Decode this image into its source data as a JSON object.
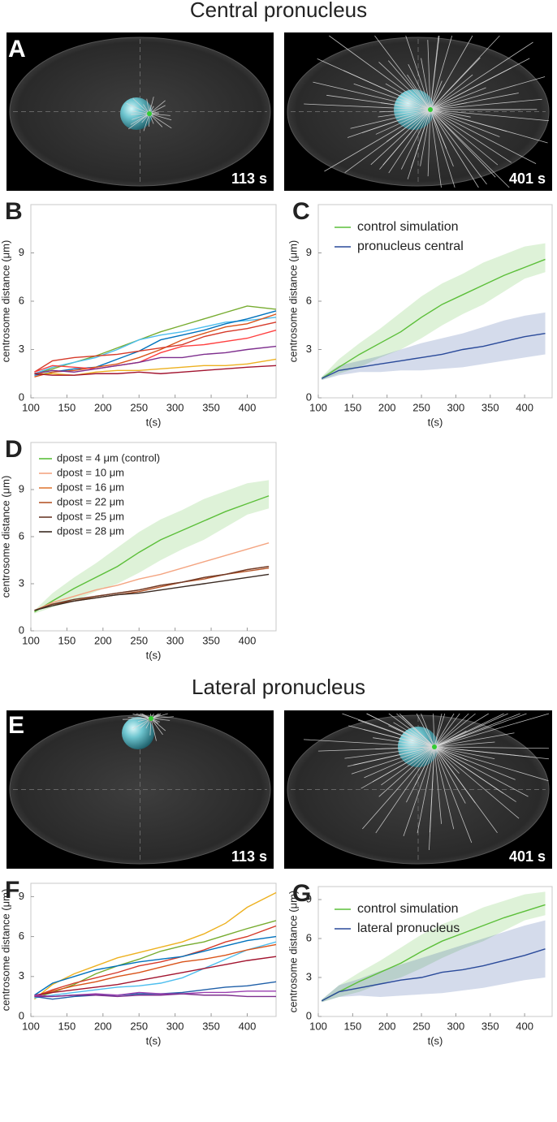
{
  "titles": [
    "Central pronucleus",
    "Lateral pronucleus"
  ],
  "image_panels": [
    {
      "letter": "A",
      "times": [
        "113 s",
        "401 s"
      ]
    },
    {
      "letter": "E",
      "times": [
        "113 s",
        "401 s"
      ]
    }
  ],
  "chart_data": [
    {
      "type": "line",
      "panel": "B",
      "xlabel": "t(s)",
      "ylabel": "centrosome distance (μm)",
      "xlim": [
        100,
        440
      ],
      "ylim": [
        0,
        12
      ],
      "xticks": [
        100,
        150,
        200,
        250,
        300,
        350,
        400
      ],
      "yticks": [
        0,
        3,
        6,
        9
      ],
      "x": [
        105,
        130,
        160,
        190,
        220,
        250,
        280,
        310,
        340,
        370,
        400,
        440
      ],
      "series": [
        {
          "color": "#77ac30",
          "values": [
            1.5,
            1.8,
            2.2,
            2.6,
            3.1,
            3.6,
            4.1,
            4.5,
            4.9,
            5.3,
            5.7,
            5.5
          ]
        },
        {
          "color": "#4dbeee",
          "values": [
            1.5,
            1.9,
            2.2,
            2.5,
            3.0,
            3.6,
            3.9,
            4.1,
            4.4,
            4.7,
            4.8,
            5.0
          ]
        },
        {
          "color": "#0072bd",
          "values": [
            1.4,
            1.6,
            1.8,
            1.9,
            2.4,
            2.9,
            3.6,
            3.9,
            4.2,
            4.6,
            4.9,
            5.4
          ]
        },
        {
          "color": "#d95319",
          "values": [
            1.3,
            1.6,
            1.7,
            1.9,
            2.1,
            2.5,
            3.0,
            3.6,
            4.0,
            4.4,
            4.6,
            5.2
          ]
        },
        {
          "color": "#d63a2a",
          "values": [
            1.6,
            2.3,
            2.5,
            2.6,
            2.7,
            2.9,
            3.1,
            3.3,
            3.8,
            4.1,
            4.3,
            4.7
          ]
        },
        {
          "color": "#ff4040",
          "values": [
            1.6,
            2.0,
            1.9,
            1.8,
            2.0,
            2.2,
            2.8,
            3.2,
            3.3,
            3.5,
            3.7,
            4.2
          ]
        },
        {
          "color": "#7e2f8e",
          "values": [
            1.5,
            1.7,
            1.6,
            1.8,
            2.0,
            2.2,
            2.5,
            2.5,
            2.7,
            2.8,
            3.0,
            3.2
          ]
        },
        {
          "color": "#edb120",
          "values": [
            1.5,
            1.5,
            1.4,
            1.6,
            1.7,
            1.7,
            1.8,
            1.9,
            2.0,
            2.0,
            2.1,
            2.4
          ]
        },
        {
          "color": "#a2142f",
          "values": [
            1.5,
            1.4,
            1.4,
            1.5,
            1.5,
            1.6,
            1.5,
            1.6,
            1.7,
            1.8,
            1.9,
            2.0
          ]
        }
      ]
    },
    {
      "type": "line",
      "panel": "C",
      "xlabel": "t(s)",
      "ylabel": "centrosome distance (μm)",
      "xlim": [
        100,
        440
      ],
      "ylim": [
        0,
        12
      ],
      "xticks": [
        100,
        150,
        200,
        250,
        300,
        350,
        400
      ],
      "yticks": [
        0,
        3,
        6,
        9
      ],
      "legend": "northwest",
      "x": [
        105,
        130,
        160,
        190,
        220,
        250,
        280,
        310,
        340,
        370,
        400,
        430
      ],
      "series": [
        {
          "name": "control simulation",
          "color": "#5cbf3a",
          "values": [
            1.2,
            1.9,
            2.7,
            3.4,
            4.1,
            5.0,
            5.8,
            6.4,
            7.0,
            7.6,
            8.1,
            8.6
          ],
          "lower": [
            1.1,
            1.5,
            1.9,
            2.5,
            3.0,
            3.7,
            4.5,
            5.2,
            5.8,
            6.6,
            7.4,
            7.8
          ],
          "upper": [
            1.3,
            2.4,
            3.4,
            4.3,
            5.3,
            6.3,
            7.1,
            7.7,
            8.4,
            8.9,
            9.4,
            9.6
          ]
        },
        {
          "name": "pronucleus central",
          "color": "#2a4a9a",
          "values": [
            1.2,
            1.7,
            1.9,
            2.1,
            2.3,
            2.5,
            2.7,
            3.0,
            3.2,
            3.5,
            3.8,
            4.0
          ],
          "lower": [
            1.1,
            1.4,
            1.6,
            1.6,
            1.7,
            1.7,
            1.8,
            1.9,
            2.1,
            2.3,
            2.5,
            2.7
          ],
          "upper": [
            1.3,
            2.0,
            2.3,
            2.6,
            3.0,
            3.4,
            3.7,
            4.0,
            4.4,
            4.8,
            5.1,
            5.3
          ]
        }
      ]
    },
    {
      "type": "line",
      "panel": "D",
      "xlabel": "t(s)",
      "ylabel": "centrosome distance (μm)",
      "xlim": [
        100,
        440
      ],
      "ylim": [
        0,
        12
      ],
      "xticks": [
        100,
        150,
        200,
        250,
        300,
        350,
        400
      ],
      "yticks": [
        0,
        3,
        6,
        9
      ],
      "legend": "northwest",
      "x": [
        105,
        130,
        160,
        190,
        220,
        250,
        280,
        310,
        340,
        370,
        400,
        430
      ],
      "series": [
        {
          "name": "dpost =  4 μm (control)",
          "color": "#5cbf3a",
          "values": [
            1.2,
            1.9,
            2.7,
            3.4,
            4.1,
            5.0,
            5.8,
            6.4,
            7.0,
            7.6,
            8.1,
            8.6
          ],
          "lower": [
            1.1,
            1.5,
            1.9,
            2.5,
            3.0,
            3.7,
            4.5,
            5.2,
            5.8,
            6.6,
            7.4,
            7.8
          ],
          "upper": [
            1.3,
            2.4,
            3.4,
            4.3,
            5.3,
            6.3,
            7.1,
            7.7,
            8.4,
            8.9,
            9.4,
            9.6
          ]
        },
        {
          "name": "dpost = 10 μm",
          "color": "#f4a582",
          "values": [
            1.3,
            1.8,
            2.2,
            2.6,
            2.9,
            3.3,
            3.6,
            4.0,
            4.4,
            4.8,
            5.2,
            5.6
          ]
        },
        {
          "name": "dpost = 16 μm",
          "color": "#e07b39",
          "values": [
            1.3,
            1.7,
            1.9,
            2.2,
            2.4,
            2.6,
            2.9,
            3.1,
            3.4,
            3.6,
            3.9,
            4.1
          ]
        },
        {
          "name": "dpost = 22 μm",
          "color": "#b5562a",
          "values": [
            1.3,
            1.7,
            1.9,
            2.1,
            2.3,
            2.5,
            2.8,
            3.1,
            3.3,
            3.6,
            3.8,
            4.0
          ]
        },
        {
          "name": "dpost = 25 μm",
          "color": "#6b3a2a",
          "values": [
            1.3,
            1.7,
            2.0,
            2.2,
            2.4,
            2.6,
            2.9,
            3.1,
            3.4,
            3.6,
            3.9,
            4.1
          ]
        },
        {
          "name": "dpost = 28 μm",
          "color": "#3a2a22",
          "values": [
            1.3,
            1.6,
            1.9,
            2.1,
            2.3,
            2.4,
            2.6,
            2.8,
            3.0,
            3.2,
            3.4,
            3.6
          ]
        }
      ]
    },
    {
      "type": "line",
      "panel": "F",
      "xlabel": "t(s)",
      "ylabel": "centrosome distance (μm)",
      "xlim": [
        100,
        440
      ],
      "ylim": [
        0,
        10
      ],
      "xticks": [
        100,
        150,
        200,
        250,
        300,
        350,
        400
      ],
      "yticks": [
        0,
        3,
        6,
        9
      ],
      "x": [
        105,
        130,
        160,
        190,
        220,
        250,
        280,
        310,
        340,
        370,
        400,
        440
      ],
      "series": [
        {
          "color": "#edb120",
          "values": [
            1.3,
            2.4,
            3.2,
            3.8,
            4.4,
            4.8,
            5.2,
            5.6,
            6.2,
            7.0,
            8.2,
            9.3
          ]
        },
        {
          "color": "#77ac30",
          "values": [
            1.4,
            1.8,
            2.4,
            3.2,
            3.8,
            4.3,
            4.9,
            5.3,
            5.6,
            6.1,
            6.6,
            7.2
          ]
        },
        {
          "color": "#d63a2a",
          "values": [
            1.5,
            2.0,
            2.5,
            2.9,
            3.3,
            3.8,
            4.1,
            4.5,
            5.0,
            5.6,
            6.0,
            6.8
          ]
        },
        {
          "color": "#0072bd",
          "values": [
            1.6,
            2.5,
            3.0,
            3.5,
            3.8,
            4.1,
            4.3,
            4.5,
            4.9,
            5.3,
            5.7,
            6.0
          ]
        },
        {
          "color": "#4dbeee",
          "values": [
            1.4,
            1.6,
            1.8,
            2.0,
            2.2,
            2.3,
            2.5,
            2.9,
            3.6,
            4.3,
            5.0,
            5.6
          ]
        },
        {
          "color": "#d95319",
          "values": [
            1.5,
            1.9,
            2.3,
            2.6,
            3.0,
            3.3,
            3.7,
            4.1,
            4.3,
            4.6,
            5.0,
            5.4
          ]
        },
        {
          "color": "#a2142f",
          "values": [
            1.6,
            1.8,
            2.0,
            2.2,
            2.4,
            2.7,
            3.0,
            3.3,
            3.6,
            3.9,
            4.2,
            4.5
          ]
        },
        {
          "color": "#1f5fa8",
          "values": [
            1.5,
            1.3,
            1.5,
            1.6,
            1.6,
            1.7,
            1.7,
            1.8,
            2.0,
            2.2,
            2.3,
            2.6
          ]
        },
        {
          "color": "#9a3fb0",
          "values": [
            1.6,
            1.5,
            1.6,
            1.7,
            1.6,
            1.8,
            1.7,
            1.7,
            1.8,
            1.8,
            1.9,
            1.9
          ]
        },
        {
          "color": "#7e2f8e",
          "values": [
            1.5,
            1.5,
            1.6,
            1.6,
            1.5,
            1.6,
            1.6,
            1.7,
            1.6,
            1.6,
            1.5,
            1.5
          ]
        }
      ]
    },
    {
      "type": "line",
      "panel": "G",
      "xlabel": "t(s)",
      "ylabel": "centrosome distance (μm)",
      "xlim": [
        100,
        440
      ],
      "ylim": [
        0,
        10
      ],
      "xticks": [
        100,
        150,
        200,
        250,
        300,
        350,
        400
      ],
      "yticks": [
        0,
        3,
        6,
        9
      ],
      "legend": "northwest",
      "x": [
        105,
        130,
        160,
        190,
        220,
        250,
        280,
        310,
        340,
        370,
        400,
        430
      ],
      "series": [
        {
          "name": "control simulation",
          "color": "#5cbf3a",
          "values": [
            1.2,
            1.9,
            2.7,
            3.4,
            4.1,
            5.0,
            5.8,
            6.4,
            7.0,
            7.6,
            8.1,
            8.6
          ],
          "lower": [
            1.1,
            1.5,
            1.9,
            2.5,
            3.0,
            3.7,
            4.5,
            5.2,
            5.8,
            6.6,
            7.4,
            7.8
          ],
          "upper": [
            1.3,
            2.4,
            3.4,
            4.3,
            5.3,
            6.3,
            7.1,
            7.7,
            8.4,
            8.9,
            9.4,
            9.6
          ]
        },
        {
          "name": "lateral pronucleus",
          "color": "#2a4a9a",
          "values": [
            1.2,
            1.9,
            2.2,
            2.5,
            2.8,
            3.0,
            3.4,
            3.6,
            3.9,
            4.3,
            4.7,
            5.2
          ],
          "lower": [
            1.1,
            1.5,
            1.6,
            1.5,
            1.6,
            1.7,
            1.8,
            2.0,
            2.2,
            2.5,
            2.8,
            3.0
          ],
          "upper": [
            1.3,
            2.4,
            2.9,
            3.5,
            4.0,
            4.5,
            5.0,
            5.5,
            6.0,
            6.5,
            7.0,
            7.4
          ]
        }
      ]
    }
  ]
}
